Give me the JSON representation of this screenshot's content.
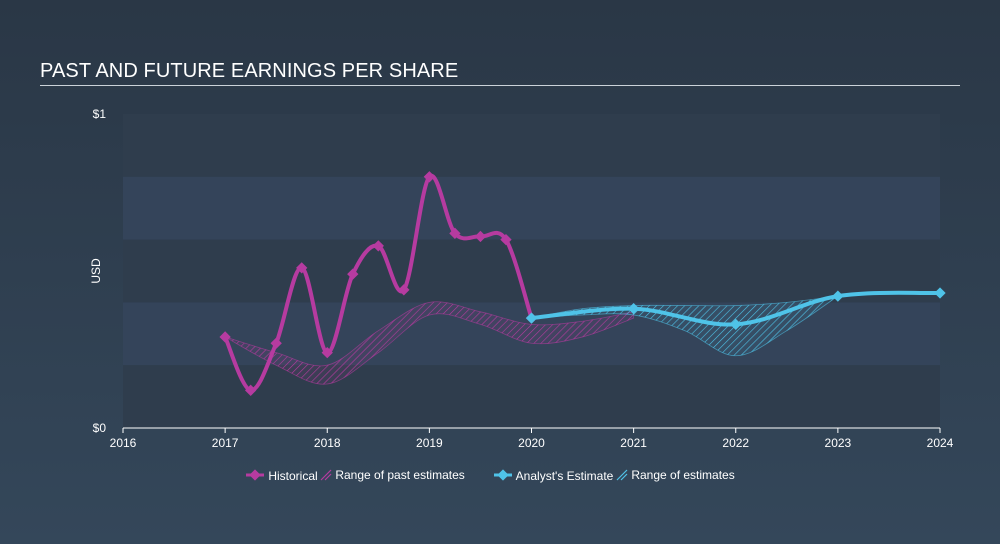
{
  "title": "PAST AND FUTURE EARNINGS PER SHARE",
  "chart_data": {
    "type": "line",
    "ylabel": "USD",
    "y_tick_labels": [
      "$0",
      "$1"
    ],
    "ylim": [
      0,
      1
    ],
    "xlim": [
      2016,
      2024
    ],
    "x_tick_labels": [
      "2016",
      "2017",
      "2018",
      "2019",
      "2020",
      "2021",
      "2022",
      "2023",
      "2024"
    ],
    "series": [
      {
        "name": "Historical",
        "color": "#b63ba0",
        "x": [
          2017.0,
          2017.25,
          2017.5,
          2017.75,
          2018.0,
          2018.25,
          2018.5,
          2018.75,
          2019.0,
          2019.25,
          2019.5,
          2019.75,
          2020.0
        ],
        "y": [
          0.29,
          0.12,
          0.27,
          0.51,
          0.24,
          0.49,
          0.58,
          0.44,
          0.8,
          0.62,
          0.61,
          0.6,
          0.35
        ]
      },
      {
        "name": "Analyst's Estimate",
        "color": "#4fc3e8",
        "x": [
          2020.0,
          2021.0,
          2022.0,
          2023.0,
          2024.0
        ],
        "y": [
          0.35,
          0.38,
          0.33,
          0.42,
          0.43
        ]
      }
    ],
    "past_estimate_range": {
      "name": "Range of past estimates",
      "x": [
        2017.0,
        2017.5,
        2018.0,
        2018.5,
        2019.0,
        2019.5,
        2020.0,
        2020.5,
        2021.0
      ],
      "low": [
        0.29,
        0.2,
        0.14,
        0.24,
        0.36,
        0.33,
        0.27,
        0.29,
        0.35
      ],
      "high": [
        0.29,
        0.24,
        0.2,
        0.31,
        0.4,
        0.37,
        0.33,
        0.34,
        0.37
      ]
    },
    "future_estimate_range": {
      "name": "Range of estimates",
      "x": [
        2020.0,
        2020.5,
        2021.0,
        2021.5,
        2022.0,
        2022.5,
        2023.0
      ],
      "low": [
        0.35,
        0.36,
        0.36,
        0.31,
        0.23,
        0.31,
        0.42
      ],
      "high": [
        0.35,
        0.38,
        0.39,
        0.39,
        0.39,
        0.4,
        0.42
      ]
    },
    "legend": {
      "position": "bottom-center",
      "historical_label": "Historical",
      "past_range_label": "Range of past estimates",
      "estimate_label": "Analyst's Estimate",
      "future_range_label": "Range of estimates"
    },
    "grid": true
  }
}
